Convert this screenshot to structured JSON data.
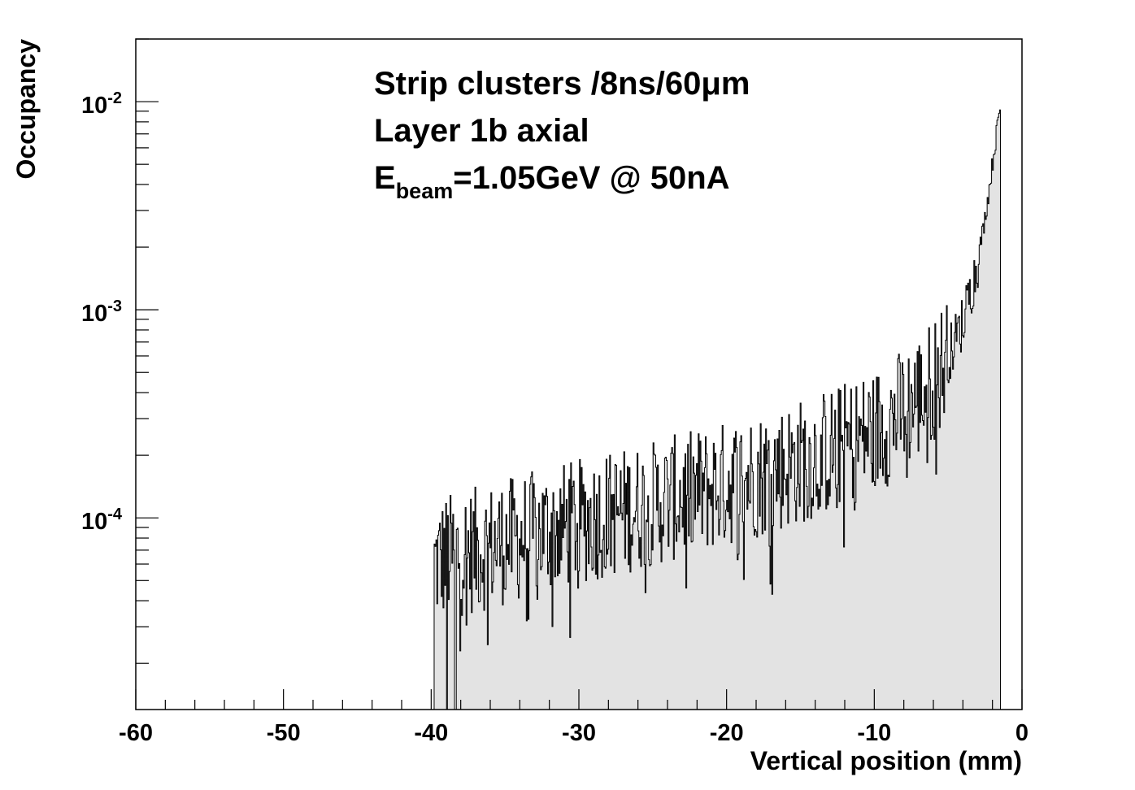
{
  "chart_data": {
    "type": "histogram",
    "xlabel": "Vertical position (mm)",
    "ylabel": "Occupancy",
    "xlim": [
      -60,
      0
    ],
    "ylim": [
      1.2e-05,
      0.02
    ],
    "log_y": true,
    "grid": false,
    "fill_color": "#e3e3e3",
    "line_color": "#000000",
    "x_ticks": [
      "-60",
      "-50",
      "-40",
      "-30",
      "-20",
      "-10",
      "0"
    ],
    "y_ticks": [
      {
        "base": "10",
        "exp": "-4",
        "value": 0.0001
      },
      {
        "base": "10",
        "exp": "-3",
        "value": 0.001
      },
      {
        "base": "10",
        "exp": "-2",
        "value": 0.01
      }
    ],
    "annotations": {
      "line1": "Strip clusters /8ns/60μm",
      "line2": "Layer 1b axial",
      "line3_main": "E",
      "line3_sub": "beam",
      "line3_rest": "=1.05GeV @ 50nA"
    },
    "bin_width": 0.06,
    "series": [
      {
        "x": [
          -39.8,
          -39.0,
          -38.0,
          -37.0,
          -36.0,
          -35.0,
          -34.0,
          -33.0,
          -32.0,
          -31.0,
          -30.0,
          -29.0,
          -28.0,
          -27.0,
          -26.0,
          -25.0,
          -24.0,
          -23.0,
          -22.0,
          -21.0,
          -20.0,
          -19.0,
          -18.0,
          -17.0,
          -16.0,
          -15.0,
          -14.0,
          -13.0,
          -12.0,
          -11.0,
          -10.0,
          -9.0,
          -8.0,
          -7.0,
          -6.0,
          -5.0,
          -4.5,
          -4.0,
          -3.5,
          -3.0,
          -2.8,
          -2.6,
          -2.4,
          -2.2,
          -2.0,
          -1.8,
          -1.6,
          -1.5
        ],
        "y": [
          6e-05,
          6.5e-05,
          6.8e-05,
          7e-05,
          7.3e-05,
          7.7e-05,
          8e-05,
          8.4e-05,
          8.8e-05,
          9.2e-05,
          9.5e-05,
          0.0001,
          0.000104,
          0.000108,
          0.000112,
          0.000117,
          0.000122,
          0.000127,
          0.000133,
          0.000139,
          0.000146,
          0.000153,
          0.00016,
          0.000168,
          0.000177,
          0.000187,
          0.000198,
          0.00021,
          0.000225,
          0.000242,
          0.00026,
          0.00029,
          0.00033,
          0.00038,
          0.00046,
          0.0006,
          0.00072,
          0.00088,
          0.0012,
          0.0017,
          0.0021,
          0.0025,
          0.0031,
          0.0039,
          0.005,
          0.0064,
          0.0082,
          0.0093
        ]
      }
    ]
  }
}
